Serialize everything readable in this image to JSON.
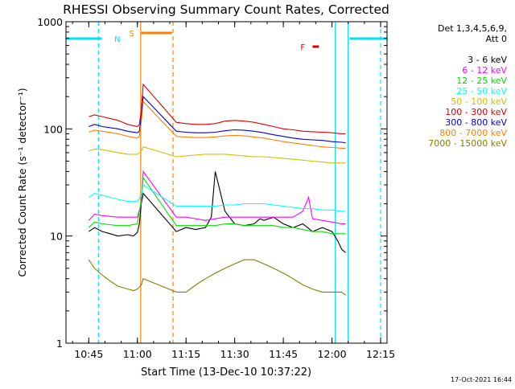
{
  "chart_data": {
    "type": "line",
    "title": "RHESSI Observing Summary Count Rates, Corrected",
    "xlabel": "Start Time (13-Dec-10 10:37:22)",
    "ylabel": "Corrected Count Rate (s⁻¹ detector⁻¹)",
    "y_scale": "log",
    "ylim": [
      1,
      1000
    ],
    "xlim_minutes": [
      10.633,
      12.283
    ],
    "x_ticks": [
      "10:45",
      "11:00",
      "11:15",
      "11:30",
      "11:45",
      "12:00",
      "12:15"
    ],
    "y_ticks": [
      "1",
      "10",
      "100",
      "1000"
    ],
    "header": {
      "detectors": "Det 1,3,4,5,6,9,",
      "attenuator": "Att 0"
    },
    "footer_date": "17-Oct-2021 16:44",
    "flags": [
      {
        "label": "N",
        "color": "#00e0ff",
        "segments": [
          [
            10.633,
            10.817
          ],
          [
            12.09,
            12.283
          ]
        ]
      },
      {
        "label": "S",
        "color": "#ff8000",
        "segments": [
          [
            11.02,
            11.178
          ]
        ]
      },
      {
        "label": "F",
        "color": "#e00000",
        "segments": [
          [
            11.9,
            11.933
          ]
        ]
      }
    ],
    "vlines": [
      {
        "x": 10.8,
        "color": "#00e0ff",
        "style": "dashed"
      },
      {
        "x": 11.017,
        "color": "#ff8000",
        "style": "solid"
      },
      {
        "x": 11.183,
        "color": "#ff8000",
        "style": "dashed"
      },
      {
        "x": 12.017,
        "color": "#00e0ff",
        "style": "solid"
      },
      {
        "x": 12.083,
        "color": "#00e0ff",
        "style": "solid"
      },
      {
        "x": 12.25,
        "color": "#00e0ff",
        "style": "dashed"
      }
    ],
    "series": [
      {
        "name": "3 - 6 keV",
        "color": "#000000",
        "x": [
          10.75,
          10.78,
          10.82,
          10.86,
          10.9,
          10.95,
          10.98,
          11.0,
          11.01,
          11.02,
          11.03,
          11.2,
          11.25,
          11.3,
          11.35,
          11.38,
          11.4,
          11.45,
          11.5,
          11.55,
          11.6,
          11.62,
          11.63,
          11.65,
          11.7,
          11.75,
          11.8,
          11.85,
          11.9,
          11.95,
          12.0,
          12.03,
          12.05,
          12.07
        ],
        "y": [
          11,
          12,
          11,
          10.5,
          10,
          10.3,
          10,
          10.8,
          13,
          20,
          25,
          11,
          12,
          11.5,
          12,
          15,
          40,
          17,
          13,
          12.5,
          13,
          14,
          14.5,
          14,
          15,
          13,
          12,
          13,
          11,
          12,
          11,
          9,
          7.5,
          7
        ]
      },
      {
        "name": "6 - 12 keV",
        "color": "#ff00ff",
        "x": [
          10.75,
          10.78,
          10.82,
          10.9,
          10.95,
          11.0,
          11.02,
          11.03,
          11.2,
          11.25,
          11.3,
          11.35,
          11.4,
          11.45,
          11.5,
          11.55,
          11.6,
          11.65,
          11.7,
          11.75,
          11.8,
          11.85,
          11.88,
          11.9,
          11.95,
          12.0,
          12.05,
          12.07
        ],
        "y": [
          14,
          16,
          15.5,
          15,
          15,
          15,
          20,
          40,
          15,
          15,
          14.5,
          14,
          14.5,
          15,
          15,
          15,
          15,
          15,
          15,
          15,
          15,
          17,
          23,
          14.5,
          14,
          13.5,
          13,
          13
        ]
      },
      {
        "name": "12 - 25 keV",
        "color": "#00e000",
        "x": [
          10.75,
          10.78,
          10.82,
          10.9,
          10.95,
          11.0,
          11.02,
          11.03,
          11.2,
          11.25,
          11.3,
          11.35,
          11.4,
          11.45,
          11.5,
          11.55,
          11.6,
          11.65,
          11.7,
          11.75,
          11.8,
          11.85,
          11.9,
          11.95,
          12.0,
          12.05,
          12.07
        ],
        "y": [
          12,
          13.5,
          13,
          12.5,
          12.5,
          13,
          22,
          35,
          12.5,
          12.5,
          12.5,
          12.5,
          12.5,
          13,
          13,
          12.5,
          12.5,
          12.5,
          12.5,
          12,
          12,
          11.5,
          11,
          11,
          10.5,
          10.5,
          10.5
        ]
      },
      {
        "name": "25 - 50 keV",
        "color": "#00ffff",
        "x": [
          10.75,
          10.78,
          10.82,
          10.9,
          10.95,
          11.0,
          11.02,
          11.03,
          11.2,
          11.25,
          11.3,
          11.35,
          11.4,
          11.45,
          11.5,
          11.55,
          11.6,
          11.65,
          11.7,
          11.75,
          11.8,
          11.85,
          11.9,
          11.95,
          12.0,
          12.05,
          12.07
        ],
        "y": [
          23,
          25,
          24,
          22,
          21,
          21,
          24,
          30,
          19,
          19,
          19,
          19,
          19,
          19.5,
          19.5,
          20,
          20,
          20,
          19.5,
          19,
          18.5,
          18,
          18,
          17.5,
          17.5,
          17,
          17
        ]
      },
      {
        "name": "50 - 100 keV",
        "color": "#d0c000",
        "x": [
          10.75,
          10.78,
          10.82,
          10.9,
          10.95,
          11.0,
          11.02,
          11.03,
          11.2,
          11.25,
          11.3,
          11.35,
          11.4,
          11.45,
          11.5,
          11.55,
          11.6,
          11.65,
          11.7,
          11.75,
          11.8,
          11.85,
          11.9,
          11.95,
          12.0,
          12.05,
          12.07
        ],
        "y": [
          62,
          65,
          64,
          60,
          58,
          58,
          62,
          68,
          55,
          56,
          57,
          58,
          58,
          58,
          57,
          56,
          55,
          55,
          54,
          53,
          52,
          51,
          50,
          49,
          48,
          48,
          48
        ]
      },
      {
        "name": "100 - 300 keV",
        "color": "#e00000",
        "x": [
          10.75,
          10.78,
          10.82,
          10.9,
          10.95,
          11.0,
          11.01,
          11.02,
          11.03,
          11.2,
          11.25,
          11.3,
          11.35,
          11.4,
          11.45,
          11.5,
          11.55,
          11.6,
          11.65,
          11.7,
          11.75,
          11.8,
          11.85,
          11.9,
          11.95,
          12.0,
          12.05,
          12.07
        ],
        "y": [
          130,
          135,
          130,
          120,
          110,
          105,
          110,
          150,
          260,
          115,
          112,
          110,
          110,
          112,
          118,
          120,
          118,
          115,
          110,
          105,
          100,
          98,
          95,
          94,
          93,
          92,
          90,
          90
        ]
      },
      {
        "name": "300 - 800 keV",
        "color": "#0000e0",
        "x": [
          10.75,
          10.78,
          10.82,
          10.9,
          10.95,
          11.0,
          11.01,
          11.02,
          11.03,
          11.2,
          11.25,
          11.3,
          11.35,
          11.4,
          11.45,
          11.5,
          11.55,
          11.6,
          11.65,
          11.7,
          11.75,
          11.8,
          11.85,
          11.9,
          11.95,
          12.0,
          12.05,
          12.07
        ],
        "y": [
          105,
          110,
          105,
          100,
          95,
          92,
          95,
          130,
          200,
          95,
          93,
          92,
          92,
          93,
          96,
          98,
          97,
          95,
          92,
          88,
          85,
          82,
          80,
          79,
          78,
          76,
          75,
          74
        ]
      },
      {
        "name": "800 - 7000 keV",
        "color": "#ff8000",
        "x": [
          10.75,
          10.78,
          10.82,
          10.9,
          10.95,
          11.0,
          11.01,
          11.02,
          11.03,
          11.2,
          11.25,
          11.3,
          11.35,
          11.4,
          11.45,
          11.5,
          11.55,
          11.6,
          11.65,
          11.7,
          11.75,
          11.8,
          11.85,
          11.9,
          11.95,
          12.0,
          12.05,
          12.07
        ],
        "y": [
          93,
          97,
          95,
          90,
          85,
          82,
          85,
          115,
          180,
          85,
          84,
          83,
          83,
          84,
          86,
          87,
          86,
          84,
          82,
          79,
          76,
          74,
          72,
          70,
          68,
          67,
          66,
          66
        ]
      },
      {
        "name": "7000 - 15000 keV",
        "color": "#808000",
        "x": [
          10.75,
          10.78,
          10.82,
          10.86,
          10.9,
          10.95,
          10.98,
          11.0,
          11.02,
          11.03,
          11.2,
          11.25,
          11.3,
          11.35,
          11.4,
          11.45,
          11.5,
          11.55,
          11.6,
          11.65,
          11.7,
          11.75,
          11.8,
          11.85,
          11.9,
          11.95,
          12.0,
          12.05,
          12.07
        ],
        "y": [
          6,
          5,
          4.3,
          3.8,
          3.4,
          3.2,
          3.1,
          3.2,
          3.5,
          4,
          3,
          3,
          3.5,
          4,
          4.5,
          5,
          5.5,
          6,
          6,
          5.5,
          5,
          4.5,
          4,
          3.5,
          3.2,
          3,
          3,
          3,
          2.8
        ]
      }
    ]
  }
}
